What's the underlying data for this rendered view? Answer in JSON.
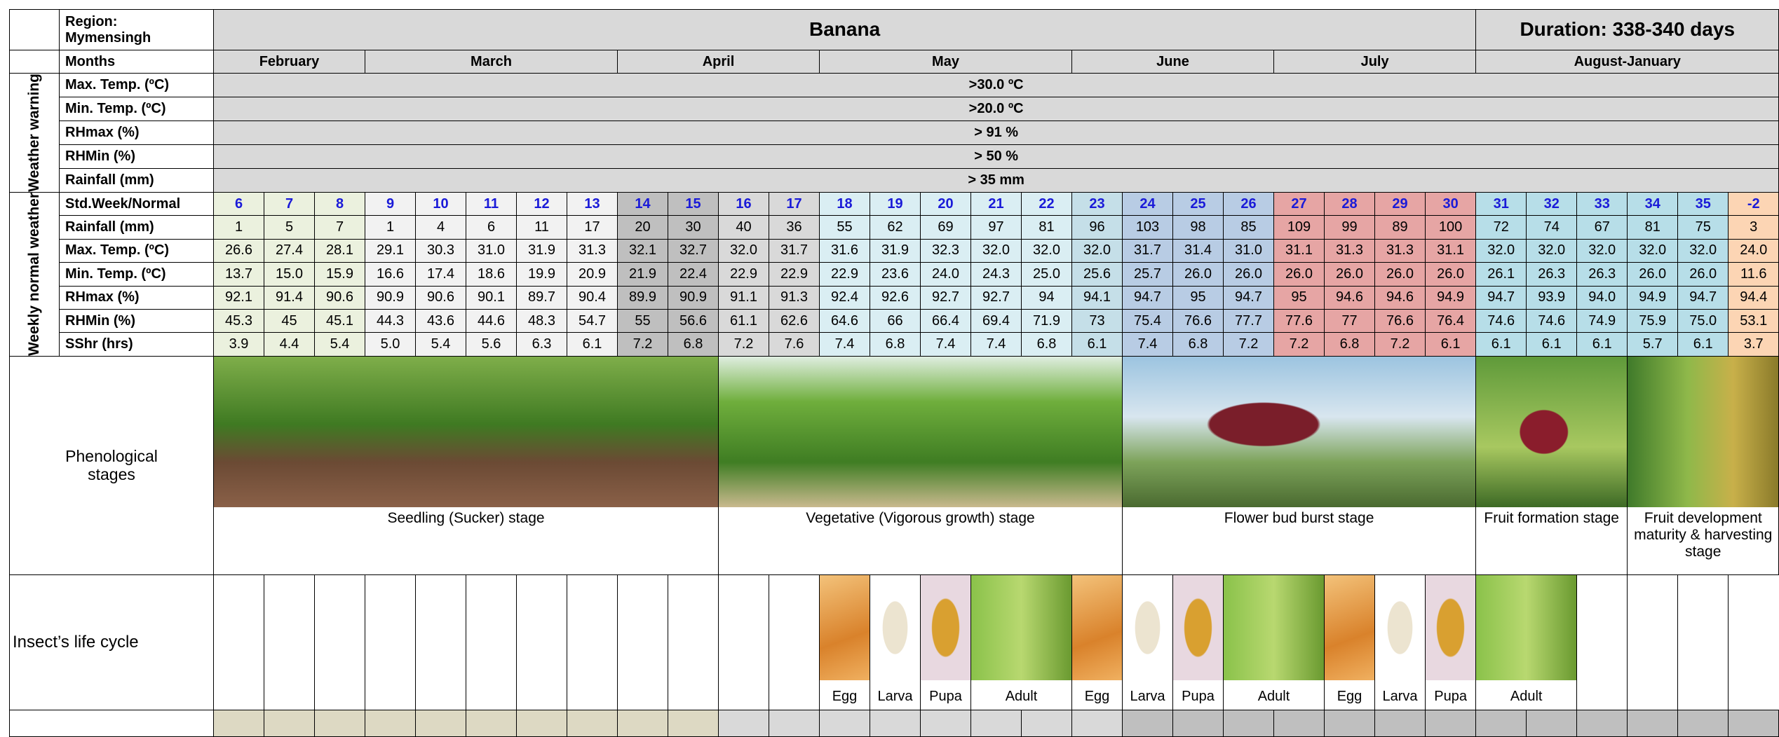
{
  "header": {
    "region_label": "Region:",
    "region": "Mymensingh",
    "crop": "Banana",
    "duration": "Duration: 338-340 days"
  },
  "months": {
    "label": "Months",
    "names": [
      "February",
      "March",
      "April",
      "May",
      "June",
      "July",
      "August-January"
    ]
  },
  "weather_warning": {
    "title": "Weather warning",
    "rows": [
      {
        "label": "Max. Temp. (ºC)",
        "value": ">30.0 ºC"
      },
      {
        "label": "Min. Temp. (ºC)",
        "value": ">20.0 ºC"
      },
      {
        "label": "RHmax (%)",
        "value": "> 91 %"
      },
      {
        "label": "RHMin (%)",
        "value": "> 50 %"
      },
      {
        "label": "Rainfall (mm)",
        "value": "> 35 mm"
      }
    ]
  },
  "weekly_normal": {
    "title": "Weekly normal weather",
    "header_label": "Std.Week/Normal",
    "weeks": [
      "6",
      "7",
      "8",
      "9",
      "10",
      "11",
      "12",
      "13",
      "14",
      "15",
      "16",
      "17",
      "18",
      "19",
      "20",
      "21",
      "22",
      "23",
      "24",
      "25",
      "26",
      "27",
      "28",
      "29",
      "30",
      "31",
      "32",
      "33",
      "34",
      "35",
      "-2"
    ],
    "rows": [
      {
        "label": "Rainfall (mm)",
        "values": [
          "1",
          "5",
          "7",
          "1",
          "4",
          "6",
          "11",
          "17",
          "20",
          "30",
          "40",
          "36",
          "55",
          "62",
          "69",
          "97",
          "81",
          "96",
          "103",
          "98",
          "85",
          "109",
          "99",
          "89",
          "100",
          "72",
          "74",
          "67",
          "81",
          "75",
          "3"
        ]
      },
      {
        "label": "Max. Temp. (ºC)",
        "values": [
          "26.6",
          "27.4",
          "28.1",
          "29.1",
          "30.3",
          "31.0",
          "31.9",
          "31.3",
          "32.1",
          "32.7",
          "32.0",
          "31.7",
          "31.6",
          "31.9",
          "32.3",
          "32.0",
          "32.0",
          "32.0",
          "31.7",
          "31.4",
          "31.0",
          "31.1",
          "31.3",
          "31.3",
          "31.1",
          "32.0",
          "32.0",
          "32.0",
          "32.0",
          "32.0",
          "24.0"
        ]
      },
      {
        "label": "Min. Temp. (ºC)",
        "values": [
          "13.7",
          "15.0",
          "15.9",
          "16.6",
          "17.4",
          "18.6",
          "19.9",
          "20.9",
          "21.9",
          "22.4",
          "22.9",
          "22.9",
          "22.9",
          "23.6",
          "24.0",
          "24.3",
          "25.0",
          "25.6",
          "25.7",
          "26.0",
          "26.0",
          "26.0",
          "26.0",
          "26.0",
          "26.0",
          "26.1",
          "26.3",
          "26.3",
          "26.0",
          "26.0",
          "11.6"
        ]
      },
      {
        "label": "RHmax (%)",
        "values": [
          "92.1",
          "91.4",
          "90.6",
          "90.9",
          "90.6",
          "90.1",
          "89.7",
          "90.4",
          "89.9",
          "90.9",
          "91.1",
          "91.3",
          "92.4",
          "92.6",
          "92.7",
          "92.7",
          "94",
          "94.1",
          "94.7",
          "95",
          "94.7",
          "95",
          "94.6",
          "94.6",
          "94.9",
          "94.7",
          "93.9",
          "94.0",
          "94.9",
          "94.7",
          "94.4"
        ]
      },
      {
        "label": "RHMin (%)",
        "values": [
          "45.3",
          "45",
          "45.1",
          "44.3",
          "43.6",
          "44.6",
          "48.3",
          "54.7",
          "55",
          "56.6",
          "61.1",
          "62.6",
          "64.6",
          "66",
          "66.4",
          "69.4",
          "71.9",
          "73",
          "75.4",
          "76.6",
          "77.7",
          "77.6",
          "77",
          "76.6",
          "76.4",
          "74.6",
          "74.6",
          "74.9",
          "75.9",
          "75.0",
          "53.1"
        ]
      },
      {
        "label": "SShr (hrs)",
        "values": [
          "3.9",
          "4.4",
          "5.4",
          "5.0",
          "5.4",
          "5.6",
          "6.3",
          "6.1",
          "7.2",
          "6.8",
          "7.2",
          "7.6",
          "7.4",
          "6.8",
          "7.4",
          "7.4",
          "6.8",
          "6.1",
          "7.4",
          "6.8",
          "7.2",
          "7.2",
          "6.8",
          "7.2",
          "6.1",
          "6.1",
          "6.1",
          "6.1",
          "5.7",
          "6.1",
          "3.7"
        ]
      }
    ]
  },
  "phenology": {
    "title": "Phenological stages",
    "stages": [
      "Seedling (Sucker) stage",
      "Vegetative (Vigorous growth) stage",
      "Flower bud burst stage",
      "Fruit formation stage",
      "Fruit development maturity & harvesting  stage"
    ]
  },
  "insect": {
    "title": "Insect’s life cycle",
    "stages": [
      "Egg",
      "Larva",
      "Pupa",
      "Adult",
      "Egg",
      "Larva",
      "Pupa",
      "Adult",
      "Egg",
      "Larva",
      "Pupa",
      "Adult"
    ]
  }
}
